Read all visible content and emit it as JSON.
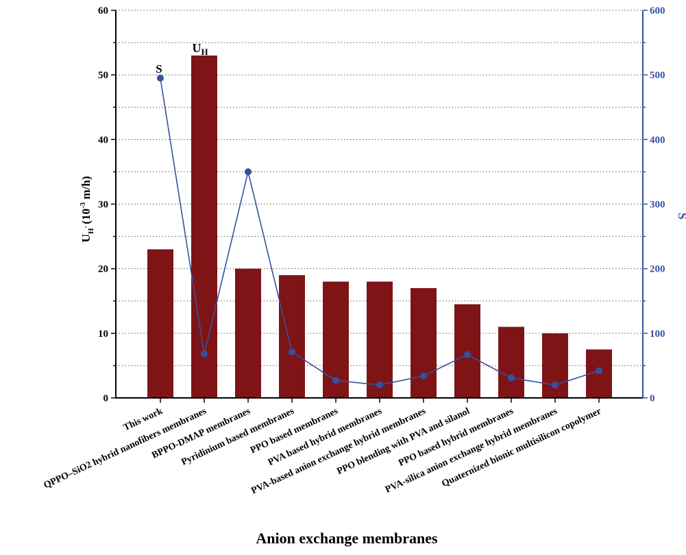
{
  "chart_data": {
    "type": "bar",
    "xlabel": "Anion exchange membranes",
    "ylabel": {
      "main": "U",
      "subscript": "H",
      "mid": "(10",
      "superscript": "-3",
      "tail": " m/h)"
    },
    "ylabel_right": "S",
    "categories": [
      "This work",
      "QPPO–SiO2 hybrid nanofibers membranes",
      "BPPO-DMAP membranes",
      "Pyridinium based membranes",
      "PPO based membranes",
      "PVA based hybrid membranes",
      "PVA-based anion exchange hybrid membranes",
      "PPO blending with PVA and silanol",
      "PPO based hybrid membranes",
      "PVA-silica anion exchange hybrid membranes",
      "Quaternized bionic multisilicon copolymer"
    ],
    "series": [
      {
        "name": "U_H",
        "axis": "left",
        "kind": "bar",
        "color": "#7e1416",
        "values": [
          23,
          53,
          20,
          19,
          18,
          18,
          17,
          14.5,
          11,
          10,
          7.5
        ]
      },
      {
        "name": "S",
        "axis": "right",
        "kind": "line",
        "color": "#3550a0",
        "values": [
          495,
          68,
          350,
          71,
          27,
          20,
          34,
          67,
          31,
          20,
          42
        ]
      }
    ],
    "ylim_left": [
      0,
      60
    ],
    "yticks_left": [
      0,
      10,
      20,
      30,
      40,
      50,
      60
    ],
    "ylim_right": [
      0,
      600
    ],
    "yticks_right": [
      0,
      100,
      200,
      300,
      400,
      500,
      600
    ],
    "gridlines": "dotted horizontal, every 5 / 50 units",
    "annotations": [
      {
        "text": "S",
        "near": "This work"
      },
      {
        "text": "U",
        "subscript": "H",
        "near": "QPPO–SiO2 hybrid nanofibers membranes"
      }
    ],
    "axis_color_right": "#3550a0"
  }
}
